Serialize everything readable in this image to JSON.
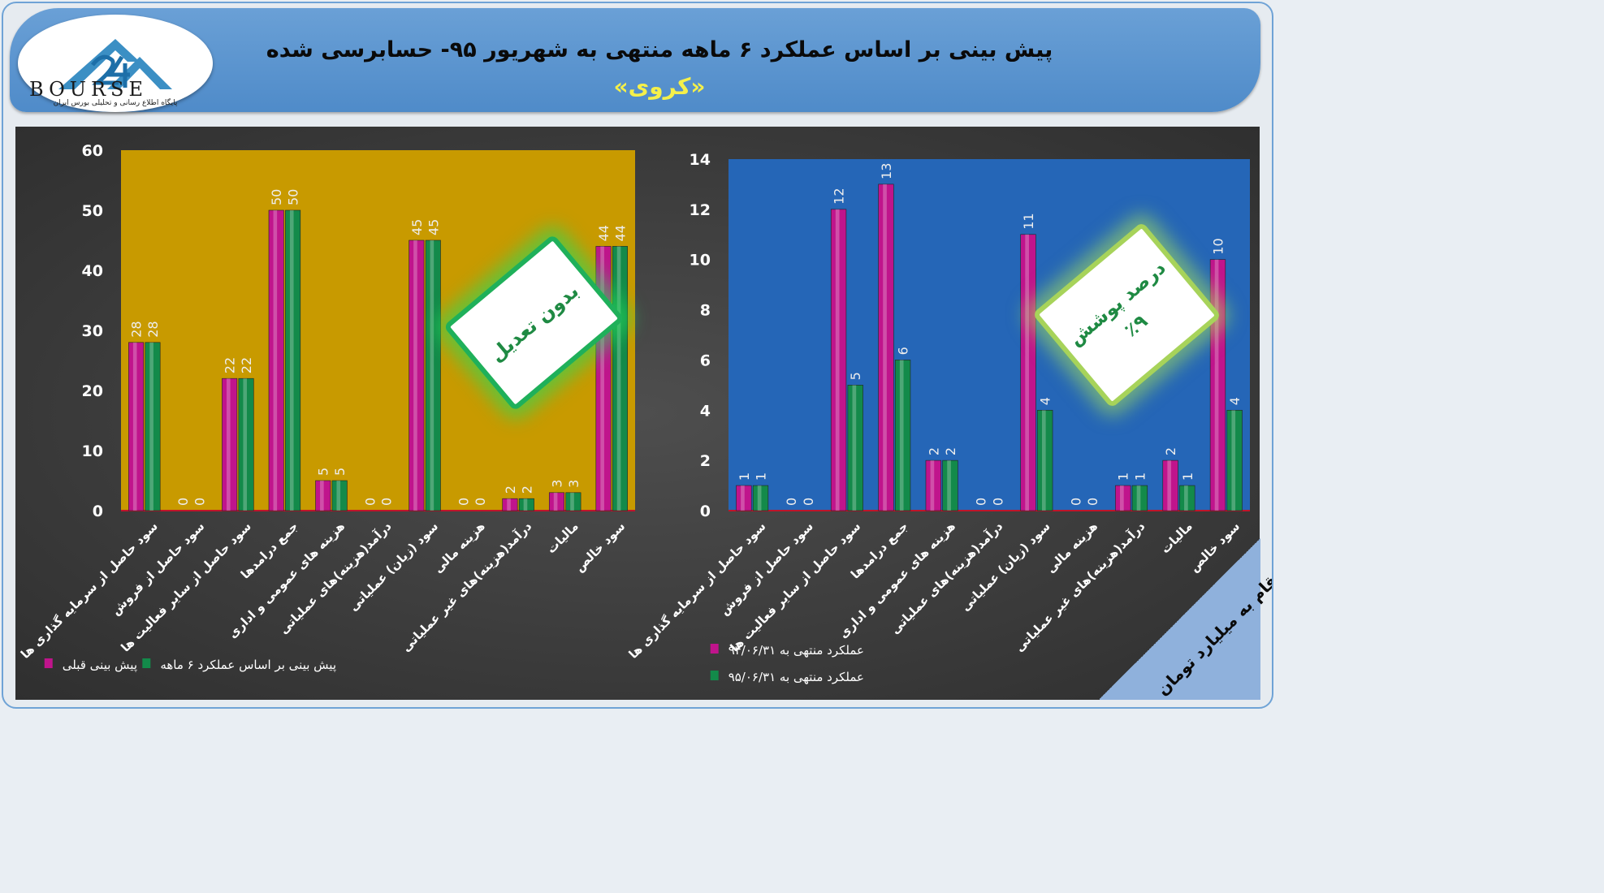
{
  "header": {
    "title": "پیش بینی بر اساس عملکرد ۶ ماهه منتهی به شهریور ۹۵- حسابرسی شده",
    "subtitle": "«کروی»",
    "logo_text": "BOURSE",
    "logo_tagline": "پایگاه اطلاع رسانی و تحلیلی بورس ایران"
  },
  "badges": {
    "left": "بدون تعدیل",
    "right_line1": "درصد پوشش",
    "right_line2": "٪۹"
  },
  "corner_note": "ارقام به میلیارد تومان",
  "colors": {
    "series1": "#c0148c",
    "series2": "#138a4a",
    "left_bg": "#c89a00",
    "right_bg": "#2566b7"
  },
  "chart_data": [
    {
      "type": "bar",
      "categories": [
        "سود حاصل از سرمایه گذاری ها",
        "سود حاصل از فروش",
        "سود حاصل از سایر فعالیت ها",
        "جمع درامدها",
        "هزینه های عمومی و اداری",
        "درآمد(هزینه)های عملیاتی",
        "سود (زیان) عملیاتی",
        "هزینه مالی",
        "درآمد(هزینه)های غیر عملیاتی",
        "مالیات",
        "سود خالص"
      ],
      "series": [
        {
          "name": "پیش بینی قبلی",
          "values": [
            28,
            0,
            22,
            50,
            5,
            0,
            45,
            0,
            2,
            3,
            44
          ]
        },
        {
          "name": "پیش بینی بر اساس عملکرد ۶ ماهه",
          "values": [
            28,
            0,
            22,
            50,
            5,
            0,
            45,
            0,
            2,
            3,
            44
          ]
        }
      ],
      "ylim": [
        0,
        60
      ],
      "yticks": [
        0,
        10,
        20,
        30,
        40,
        50,
        60
      ],
      "legend_position": "bottom"
    },
    {
      "type": "bar",
      "categories": [
        "سود حاصل از سرمایه گذاری ها",
        "سود حاصل از فروش",
        "سود حاصل از سایر فعالیت ها",
        "جمع درامدها",
        "هزینه های عمومی و اداری",
        "درآمد(هزینه)های عملیاتی",
        "سود (زیان) عملیاتی",
        "هزینه مالی",
        "درآمد(هزینه)های غیر عملیاتی",
        "مالیات",
        "سود خالص"
      ],
      "series": [
        {
          "name": "عملکرد منتهی به ۹۴/۰۶/۳۱",
          "values": [
            1,
            0,
            12,
            13,
            2,
            0,
            11,
            0,
            1,
            2,
            10
          ]
        },
        {
          "name": "عملکرد منتهی به ۹۵/۰۶/۳۱",
          "values": [
            1,
            0,
            5,
            6,
            2,
            0,
            4,
            0,
            1,
            1,
            4
          ]
        }
      ],
      "ylim": [
        0,
        14
      ],
      "yticks": [
        0,
        2,
        4,
        6,
        8,
        10,
        12,
        14
      ],
      "legend_position": "bottom"
    }
  ]
}
